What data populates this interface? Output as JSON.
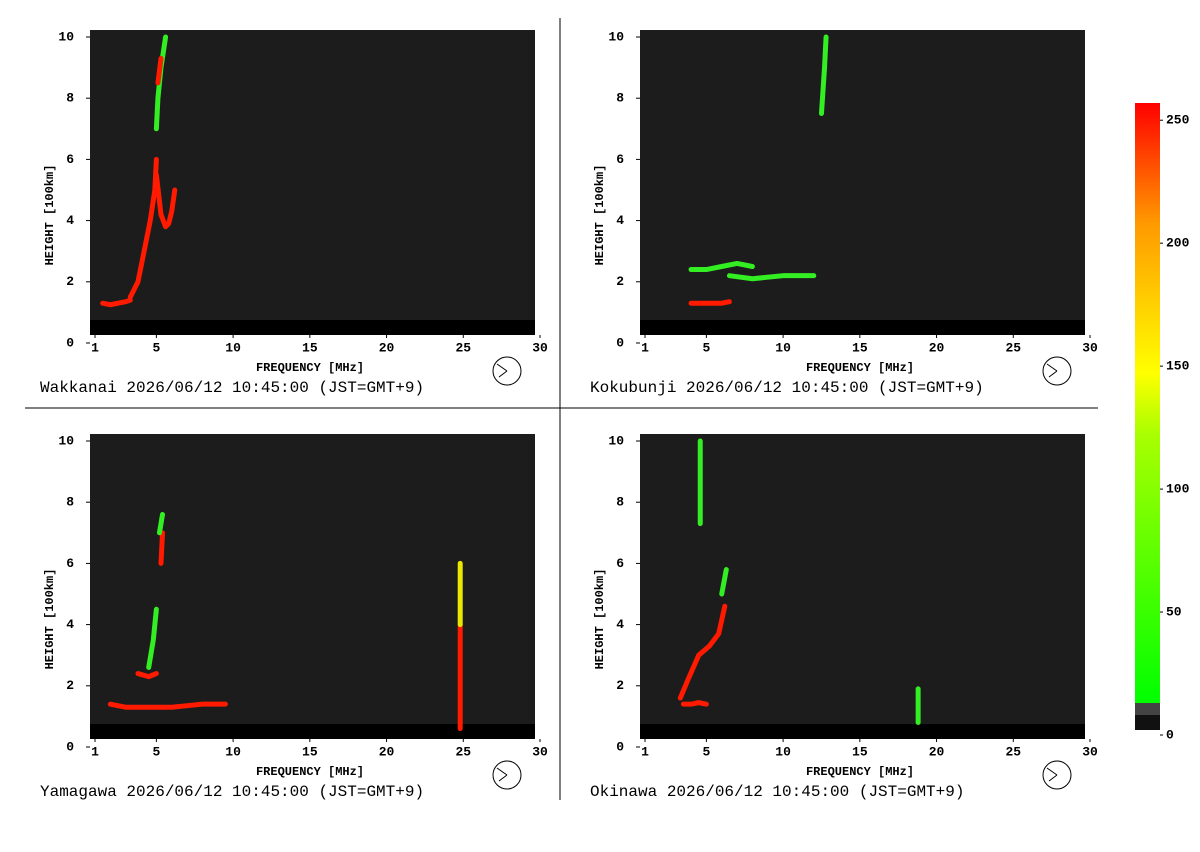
{
  "chart_data": [
    {
      "type": "ionogram",
      "title": "Wakkanai 2026/06/12 10:45:00 (JST=GMT+9)",
      "xlabel": "FREQUENCY [MHz]",
      "ylabel": "HEIGHT [100km]",
      "xlim": [
        1,
        30
      ],
      "xticks": [
        1,
        5,
        10,
        15,
        20,
        25,
        30
      ],
      "ylim": [
        0,
        10
      ],
      "yticks": [
        0,
        2,
        4,
        6,
        8,
        10
      ],
      "echoes": [
        {
          "color": "#ff1a00",
          "x": [
            1.5,
            2,
            2.5,
            3,
            3.3
          ],
          "y": [
            1.3,
            1.25,
            1.3,
            1.35,
            1.4
          ]
        },
        {
          "color": "#ff1a00",
          "x": [
            3.3,
            3.8,
            4.2,
            4.6,
            4.9,
            5.0
          ],
          "y": [
            1.5,
            2.0,
            3.0,
            4.0,
            5.0,
            6.0
          ]
        },
        {
          "color": "#ff1a00",
          "x": [
            5.0,
            5.3,
            5.6,
            5.8,
            6.0,
            6.2
          ],
          "y": [
            5.5,
            4.2,
            3.8,
            3.9,
            4.3,
            5.0
          ]
        },
        {
          "color": "#33ee22",
          "x": [
            5.0,
            5.1,
            5.3,
            5.6
          ],
          "y": [
            7.0,
            8.0,
            9.0,
            10.0
          ]
        },
        {
          "color": "#ff1a00",
          "x": [
            5.1,
            5.3
          ],
          "y": [
            8.5,
            9.3
          ]
        }
      ]
    },
    {
      "type": "ionogram",
      "title": "Kokubunji 2026/06/12 10:45:00 (JST=GMT+9)",
      "xlabel": "FREQUENCY [MHz]",
      "ylabel": "HEIGHT [100km]",
      "xlim": [
        1,
        30
      ],
      "xticks": [
        1,
        5,
        10,
        15,
        20,
        25,
        30
      ],
      "ylim": [
        0,
        10
      ],
      "yticks": [
        0,
        2,
        4,
        6,
        8,
        10
      ],
      "echoes": [
        {
          "color": "#ff1a00",
          "x": [
            4,
            5,
            6,
            6.5
          ],
          "y": [
            1.3,
            1.3,
            1.3,
            1.35
          ]
        },
        {
          "color": "#33ee22",
          "x": [
            4,
            5,
            6,
            7,
            8
          ],
          "y": [
            2.4,
            2.4,
            2.5,
            2.6,
            2.5
          ]
        },
        {
          "color": "#33ee22",
          "x": [
            6.5,
            8,
            10,
            12
          ],
          "y": [
            2.2,
            2.1,
            2.2,
            2.2
          ]
        },
        {
          "color": "#33ee22",
          "x": [
            12.5,
            12.7,
            12.8
          ],
          "y": [
            7.5,
            9,
            10
          ]
        }
      ]
    },
    {
      "type": "ionogram",
      "title": "Yamagawa 2026/06/12 10:45:00 (JST=GMT+9)",
      "xlabel": "FREQUENCY [MHz]",
      "ylabel": "HEIGHT [100km]",
      "xlim": [
        1,
        30
      ],
      "xticks": [
        1,
        5,
        10,
        15,
        20,
        25,
        30
      ],
      "ylim": [
        0,
        10
      ],
      "yticks": [
        0,
        2,
        4,
        6,
        8,
        10
      ],
      "echoes": [
        {
          "color": "#ff1a00",
          "x": [
            2,
            3,
            4,
            5,
            6,
            7,
            8,
            9.5
          ],
          "y": [
            1.4,
            1.3,
            1.3,
            1.3,
            1.3,
            1.35,
            1.4,
            1.4
          ]
        },
        {
          "color": "#ff1a00",
          "x": [
            3.8,
            4.5,
            5
          ],
          "y": [
            2.4,
            2.3,
            2.4
          ]
        },
        {
          "color": "#33ee22",
          "x": [
            4.5,
            4.8,
            5.0
          ],
          "y": [
            2.6,
            3.5,
            4.5
          ]
        },
        {
          "color": "#ff1a00",
          "x": [
            5.3,
            5.4
          ],
          "y": [
            6.0,
            7.0
          ]
        },
        {
          "color": "#33ee22",
          "x": [
            5.2,
            5.4
          ],
          "y": [
            7,
            7.6
          ]
        },
        {
          "color": "#ff1a00",
          "x": [
            24.8,
            24.8
          ],
          "y": [
            0.6,
            4
          ]
        },
        {
          "color": "#e8e800",
          "x": [
            24.8,
            24.8
          ],
          "y": [
            4,
            6
          ]
        }
      ]
    },
    {
      "type": "ionogram",
      "title": "Okinawa 2026/06/12 10:45:00 (JST=GMT+9)",
      "xlabel": "FREQUENCY [MHz]",
      "ylabel": "HEIGHT [100km]",
      "xlim": [
        1,
        30
      ],
      "xticks": [
        1,
        5,
        10,
        15,
        20,
        25,
        30
      ],
      "ylim": [
        0,
        10
      ],
      "yticks": [
        0,
        2,
        4,
        6,
        8,
        10
      ],
      "echoes": [
        {
          "color": "#ff1a00",
          "x": [
            3.5,
            4,
            4.5,
            5
          ],
          "y": [
            1.4,
            1.4,
            1.45,
            1.4
          ]
        },
        {
          "color": "#ff1a00",
          "x": [
            3.3,
            3.8,
            4.5,
            5.2,
            5.8,
            6.2
          ],
          "y": [
            1.6,
            2.2,
            3.0,
            3.3,
            3.7,
            4.6
          ]
        },
        {
          "color": "#33ee22",
          "x": [
            6,
            6.3
          ],
          "y": [
            5,
            5.8
          ]
        },
        {
          "color": "#33ee22",
          "x": [
            4.6,
            4.6
          ],
          "y": [
            7.3,
            10
          ]
        },
        {
          "color": "#33ee22",
          "x": [
            18.8,
            18.8
          ],
          "y": [
            0.8,
            1.9
          ]
        }
      ]
    }
  ],
  "colorbar": {
    "lim": [
      0,
      257
    ],
    "ticks": [
      0,
      50,
      100,
      150,
      200,
      250
    ]
  }
}
